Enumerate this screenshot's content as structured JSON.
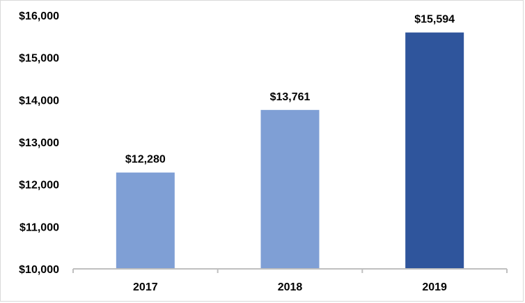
{
  "chart_data": {
    "type": "bar",
    "title": "",
    "xlabel": "",
    "ylabel": "",
    "categories": [
      "2017",
      "2018",
      "2019"
    ],
    "values": [
      12280,
      13761,
      15594
    ],
    "data_labels": [
      "$12,280",
      "$13,761",
      "$15,594"
    ],
    "ylim": [
      10000,
      16000
    ],
    "y_ticks": [
      10000,
      11000,
      12000,
      13000,
      14000,
      15000,
      16000
    ],
    "y_tick_labels": [
      "$10,000",
      "$11,000",
      "$12,000",
      "$13,000",
      "$14,000",
      "$15,000",
      "$16,000"
    ],
    "bar_colors": [
      "#7f9fd5",
      "#7f9fd5",
      "#2f559c"
    ],
    "axis_color": "#bfbfbf",
    "grid": false,
    "legend": "none"
  }
}
